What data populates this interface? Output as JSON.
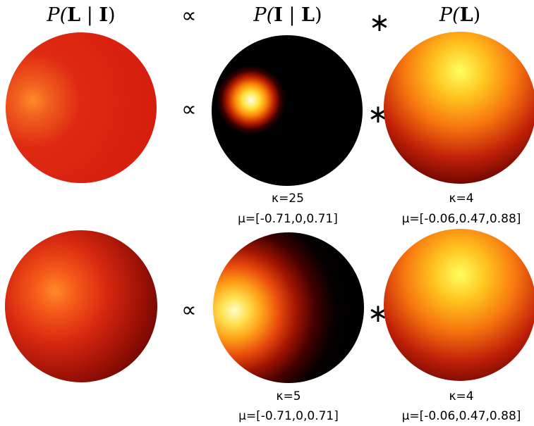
{
  "headers": {
    "posterior": {
      "prefix": "P(",
      "var1": "L",
      "sep": " | ",
      "var2": "I",
      "suffix": ")"
    },
    "proportional_symbol": "∝",
    "likelihood": {
      "prefix": "P(",
      "var1": "I",
      "sep": " | ",
      "var2": "L",
      "suffix": ")"
    },
    "convolution_symbol": "∗",
    "prior": {
      "prefix": "P(",
      "var1": "L",
      "suffix": ")"
    }
  },
  "rows": [
    {
      "proportional_symbol": "∝",
      "convolution_symbol": "∗",
      "likelihood": {
        "kappa": "κ=25",
        "mu": "μ=[-0.71,0,0.71]"
      },
      "prior": {
        "kappa": "κ=4",
        "mu": "μ=[-0.06,0.47,0.88]"
      }
    },
    {
      "proportional_symbol": "∝",
      "convolution_symbol": "∗",
      "likelihood": {
        "kappa": "κ=5",
        "mu": "μ=[-0.71,0,0.71]"
      },
      "prior": {
        "kappa": "κ=4",
        "mu": "μ=[-0.06,0.47,0.88]"
      }
    }
  ],
  "colors": {
    "background": "#ffffff",
    "sphere_dark": "#000000",
    "sphere_red": "#e02010",
    "sphere_orange": "#ff9000",
    "sphere_yellow": "#ffff80",
    "text": "#000000"
  }
}
